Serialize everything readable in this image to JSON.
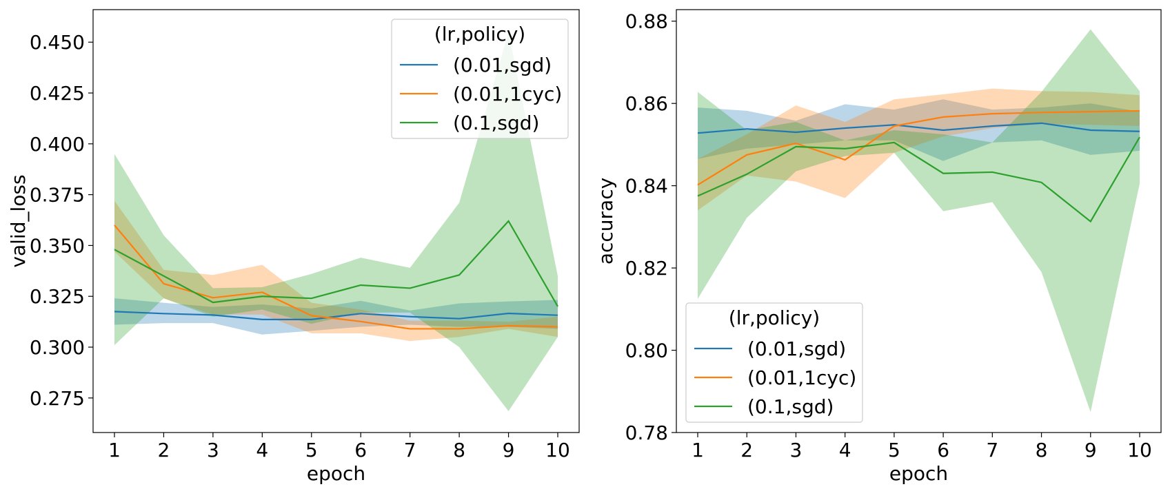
{
  "chart_data": [
    {
      "type": "line",
      "xlabel": "epoch",
      "ylabel": "valid_loss",
      "x": [
        1,
        2,
        3,
        4,
        5,
        6,
        7,
        8,
        9,
        10
      ],
      "xticks": [
        "1",
        "2",
        "3",
        "4",
        "5",
        "6",
        "7",
        "8",
        "9",
        "10"
      ],
      "yticks": [
        "0.275",
        "0.300",
        "0.325",
        "0.350",
        "0.375",
        "0.400",
        "0.425",
        "0.450"
      ],
      "ylim": [
        0.258,
        0.466
      ],
      "grid": false,
      "legend_title": "(lr,policy)",
      "legend_position": "top-right",
      "series": [
        {
          "name": "(0.01,sgd)",
          "color": "#1f77b4",
          "values": [
            0.3175,
            0.3165,
            0.3158,
            0.3136,
            0.3136,
            0.3165,
            0.315,
            0.314,
            0.3166,
            0.3157
          ],
          "lower": [
            0.311,
            0.3118,
            0.3118,
            0.3062,
            0.308,
            0.31,
            0.311,
            0.31,
            0.31,
            0.309
          ],
          "upper": [
            0.324,
            0.3218,
            0.3198,
            0.321,
            0.319,
            0.3228,
            0.318,
            0.3215,
            0.3225,
            0.3232
          ]
        },
        {
          "name": "(0.01,1cyc)",
          "color": "#ff7f0e",
          "values": [
            0.36,
            0.3312,
            0.3243,
            0.327,
            0.3155,
            0.3126,
            0.309,
            0.309,
            0.3105,
            0.31
          ],
          "lower": [
            0.347,
            0.324,
            0.316,
            0.316,
            0.3068,
            0.3068,
            0.303,
            0.305,
            0.309,
            0.305
          ],
          "upper": [
            0.372,
            0.338,
            0.3355,
            0.3405,
            0.3218,
            0.3185,
            0.313,
            0.313,
            0.3125,
            0.315
          ]
        },
        {
          "name": "(0.1,sgd)",
          "color": "#2ca02c",
          "values": [
            0.348,
            0.335,
            0.322,
            0.325,
            0.324,
            0.3305,
            0.329,
            0.3355,
            0.362,
            0.32
          ],
          "lower": [
            0.301,
            0.324,
            0.315,
            0.3185,
            0.3115,
            0.317,
            0.317,
            0.3,
            0.2685,
            0.305
          ],
          "upper": [
            0.395,
            0.355,
            0.329,
            0.3295,
            0.336,
            0.344,
            0.339,
            0.371,
            0.455,
            0.335
          ]
        }
      ]
    },
    {
      "type": "line",
      "xlabel": "epoch",
      "ylabel": "accuracy",
      "x": [
        1,
        2,
        3,
        4,
        5,
        6,
        7,
        8,
        9,
        10
      ],
      "xticks": [
        "1",
        "2",
        "3",
        "4",
        "5",
        "6",
        "7",
        "8",
        "9",
        "10"
      ],
      "yticks": [
        "0.78",
        "0.80",
        "0.82",
        "0.84",
        "0.86",
        "0.88"
      ],
      "ylim": [
        0.78,
        0.8828
      ],
      "grid": false,
      "legend_title": "(lr,policy)",
      "legend_position": "bottom-left",
      "series": [
        {
          "name": "(0.01,sgd)",
          "color": "#1f77b4",
          "values": [
            0.8528,
            0.8538,
            0.853,
            0.854,
            0.8548,
            0.8535,
            0.8545,
            0.8552,
            0.8535,
            0.8532
          ],
          "lower": [
            0.8465,
            0.849,
            0.85,
            0.851,
            0.851,
            0.846,
            0.8505,
            0.851,
            0.8475,
            0.8485
          ],
          "upper": [
            0.859,
            0.8582,
            0.8558,
            0.8598,
            0.8585,
            0.861,
            0.8585,
            0.859,
            0.86,
            0.858
          ]
        },
        {
          "name": "(0.01,1cyc)",
          "color": "#ff7f0e",
          "values": [
            0.8402,
            0.8475,
            0.8503,
            0.8463,
            0.8545,
            0.8567,
            0.8575,
            0.8578,
            0.858,
            0.8582
          ],
          "lower": [
            0.834,
            0.8425,
            0.841,
            0.837,
            0.848,
            0.852,
            0.854,
            0.855,
            0.8548,
            0.8545
          ],
          "upper": [
            0.8465,
            0.8525,
            0.8595,
            0.8555,
            0.861,
            0.8622,
            0.8636,
            0.863,
            0.8628,
            0.862
          ]
        },
        {
          "name": "(0.1,sgd)",
          "color": "#2ca02c",
          "values": [
            0.8375,
            0.8428,
            0.8495,
            0.849,
            0.8505,
            0.843,
            0.8433,
            0.8408,
            0.8313,
            0.8518
          ],
          "lower": [
            0.8125,
            0.8322,
            0.8435,
            0.8472,
            0.848,
            0.8338,
            0.836,
            0.819,
            0.785,
            0.8405
          ],
          "upper": [
            0.8628,
            0.8535,
            0.8555,
            0.851,
            0.8535,
            0.8525,
            0.8505,
            0.8628,
            0.878,
            0.863
          ]
        }
      ]
    }
  ]
}
